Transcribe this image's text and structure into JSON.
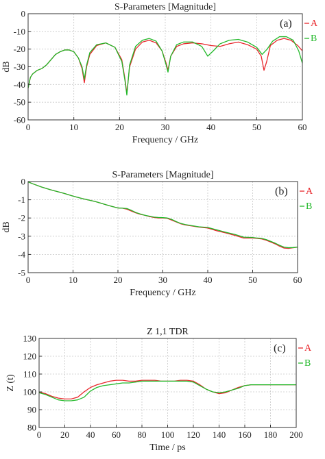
{
  "chart_data": [
    {
      "type": "line",
      "title": "S-Parameters [Magnitude]",
      "panel_label": "(a)",
      "xlabel": "Frequency / GHz",
      "ylabel": "dB",
      "xlim": [
        0,
        60
      ],
      "ylim": [
        -60,
        0
      ],
      "xticks": [
        0,
        10,
        20,
        30,
        40,
        50,
        60
      ],
      "yticks": [
        0,
        -10,
        -20,
        -30,
        -40,
        -50,
        -60
      ],
      "grid": true,
      "legend_position": "top-right",
      "series": [
        {
          "name": "A",
          "color": "#e8262b",
          "x": [
            0,
            0.5,
            1,
            2,
            3,
            4,
            5,
            6,
            7,
            8,
            9,
            10,
            11,
            11.8,
            12.3,
            12.8,
            13.5,
            15,
            17,
            19,
            20.5,
            21.2,
            21.6,
            22.2,
            23.5,
            25,
            26.5,
            28,
            29.3,
            30.2,
            30.6,
            31.2,
            32.5,
            34,
            36,
            38,
            40,
            42,
            44,
            46,
            48,
            50,
            51,
            51.6,
            52.2,
            53,
            54.5,
            56,
            57.5,
            59,
            60
          ],
          "y": [
            -42,
            -36,
            -34,
            -32,
            -31,
            -29,
            -26,
            -23,
            -21.5,
            -20.5,
            -20.5,
            -21.5,
            -25,
            -31,
            -39,
            -30,
            -23,
            -18,
            -16.5,
            -19,
            -26,
            -37,
            -45,
            -30,
            -20,
            -16,
            -15,
            -16.5,
            -21,
            -28,
            -32,
            -24,
            -18.5,
            -17,
            -16.5,
            -17,
            -18,
            -18.5,
            -17,
            -16,
            -17.5,
            -20,
            -24,
            -32,
            -27,
            -18,
            -15,
            -14,
            -15,
            -18,
            -21
          ]
        },
        {
          "name": "B",
          "color": "#22b92a",
          "x": [
            0,
            0.5,
            1,
            2,
            3,
            4,
            5,
            6,
            7,
            8,
            9,
            10,
            11,
            11.8,
            12.3,
            12.8,
            13.5,
            15,
            17,
            19,
            20.5,
            21.2,
            21.6,
            22.2,
            23.5,
            25,
            26.5,
            28,
            29.3,
            30.2,
            30.6,
            31.2,
            32.5,
            34,
            36,
            38,
            39.3,
            40.5,
            42,
            44,
            46,
            48,
            50,
            51.2,
            52.3,
            53.5,
            55,
            56.5,
            58,
            59.2,
            60
          ],
          "y": [
            -42,
            -36,
            -34,
            -32,
            -31,
            -29,
            -26,
            -23,
            -21.5,
            -20.5,
            -20.5,
            -21.5,
            -25,
            -30,
            -37,
            -29,
            -22,
            -17.5,
            -16.5,
            -19,
            -27,
            -38,
            -46,
            -29,
            -18.5,
            -15,
            -14,
            -15.5,
            -21,
            -29,
            -33,
            -24,
            -17.5,
            -16,
            -16,
            -18.5,
            -24,
            -21,
            -17,
            -15,
            -14.5,
            -16,
            -19,
            -23,
            -20,
            -15.5,
            -13,
            -13,
            -15,
            -21,
            -28
          ]
        }
      ]
    },
    {
      "type": "line",
      "title": "S-Parameters [Magnitude]",
      "panel_label": "(b)",
      "xlabel": "Frequency / GHz",
      "ylabel": "dB",
      "xlim": [
        0,
        60
      ],
      "ylim": [
        -5,
        0
      ],
      "xticks": [
        0,
        10,
        20,
        30,
        40,
        50,
        60
      ],
      "yticks": [
        0,
        -1,
        -2,
        -3,
        -4,
        -5
      ],
      "grid": true,
      "legend_position": "top-right",
      "series": [
        {
          "name": "A",
          "color": "#e8262b",
          "x": [
            0,
            1,
            3,
            5,
            8,
            10,
            12,
            15,
            18,
            20,
            21,
            22,
            23,
            24,
            25,
            26,
            27,
            28,
            29,
            30,
            31,
            32,
            33,
            34,
            35,
            36,
            38,
            40,
            42,
            44,
            46,
            48,
            50,
            51,
            52,
            53,
            54,
            55,
            56,
            57,
            58,
            59,
            60
          ],
          "y": [
            -0.02,
            -0.12,
            -0.3,
            -0.45,
            -0.65,
            -0.8,
            -0.93,
            -1.1,
            -1.32,
            -1.45,
            -1.46,
            -1.52,
            -1.62,
            -1.72,
            -1.8,
            -1.85,
            -1.92,
            -1.97,
            -2.0,
            -2.0,
            -2.02,
            -2.12,
            -2.22,
            -2.32,
            -2.38,
            -2.42,
            -2.5,
            -2.55,
            -2.7,
            -2.82,
            -2.95,
            -3.1,
            -3.1,
            -3.12,
            -3.15,
            -3.22,
            -3.32,
            -3.42,
            -3.55,
            -3.65,
            -3.67,
            -3.63,
            -3.6
          ]
        },
        {
          "name": "B",
          "color": "#22b92a",
          "x": [
            0,
            1,
            3,
            5,
            8,
            10,
            12,
            15,
            18,
            20,
            21,
            22,
            23,
            24,
            25,
            26,
            27,
            28,
            29,
            30,
            31,
            32,
            33,
            34,
            35,
            36,
            38,
            40,
            42,
            44,
            46,
            48,
            50,
            51,
            52,
            53,
            54,
            55,
            56,
            57,
            58,
            59,
            60
          ],
          "y": [
            -0.02,
            -0.12,
            -0.3,
            -0.45,
            -0.65,
            -0.8,
            -0.93,
            -1.1,
            -1.32,
            -1.45,
            -1.46,
            -1.48,
            -1.58,
            -1.7,
            -1.78,
            -1.85,
            -1.9,
            -1.95,
            -1.97,
            -1.98,
            -2.0,
            -2.08,
            -2.2,
            -2.3,
            -2.36,
            -2.4,
            -2.48,
            -2.52,
            -2.65,
            -2.78,
            -2.9,
            -3.05,
            -3.07,
            -3.1,
            -3.12,
            -3.18,
            -3.28,
            -3.38,
            -3.5,
            -3.6,
            -3.63,
            -3.62,
            -3.6
          ]
        }
      ]
    },
    {
      "type": "line",
      "title": "Z 1,1 TDR",
      "panel_label": "(c)",
      "xlabel": "Time / ps",
      "ylabel": "Z (t)",
      "xlim": [
        0,
        200
      ],
      "ylim": [
        80,
        130
      ],
      "xticks": [
        0,
        20,
        40,
        60,
        80,
        100,
        120,
        140,
        160,
        180,
        200
      ],
      "yticks": [
        130,
        120,
        110,
        100,
        90,
        80
      ],
      "grid": true,
      "legend_position": "top-right",
      "series": [
        {
          "name": "A",
          "color": "#e8262b",
          "x": [
            0,
            5,
            10,
            15,
            20,
            25,
            30,
            35,
            40,
            45,
            50,
            55,
            60,
            65,
            70,
            75,
            80,
            85,
            90,
            95,
            100,
            105,
            110,
            115,
            120,
            125,
            130,
            135,
            140,
            145,
            150,
            155,
            160,
            165,
            170,
            180,
            190,
            200
          ],
          "y": [
            100,
            99,
            97.5,
            96.5,
            96,
            96,
            97,
            100,
            102.5,
            104,
            105,
            106,
            106.5,
            106.5,
            106,
            106,
            106.5,
            106.5,
            106.5,
            106,
            106,
            106,
            106.5,
            106.5,
            106,
            104,
            101.5,
            100,
            99,
            99.5,
            101,
            102.5,
            103.5,
            104,
            104,
            104,
            104,
            104
          ]
        },
        {
          "name": "B",
          "color": "#22b92a",
          "x": [
            0,
            5,
            10,
            15,
            20,
            25,
            30,
            35,
            40,
            45,
            50,
            55,
            60,
            65,
            70,
            75,
            80,
            85,
            90,
            95,
            100,
            105,
            110,
            115,
            120,
            125,
            130,
            135,
            140,
            145,
            150,
            155,
            160,
            165,
            170,
            180,
            190,
            200
          ],
          "y": [
            99.5,
            98.5,
            97,
            95.5,
            95,
            95,
            95.5,
            97,
            100.5,
            102.5,
            103.5,
            104,
            104.5,
            105,
            105,
            105.5,
            106,
            106,
            106,
            106,
            106,
            106,
            106,
            106,
            105.5,
            103.5,
            101.5,
            100,
            99.5,
            100,
            101,
            102,
            103.5,
            104,
            104,
            104,
            104,
            104
          ]
        }
      ]
    }
  ]
}
